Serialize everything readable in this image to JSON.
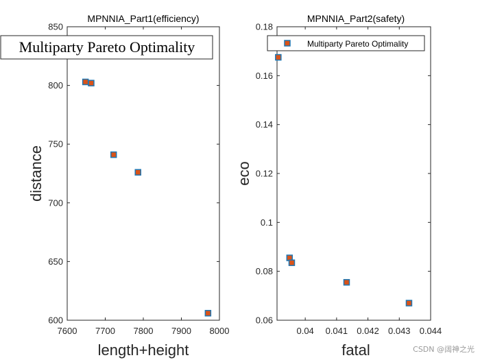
{
  "chart_data": [
    {
      "type": "scatter",
      "title": "MPNNIA_Part1(efficiency)",
      "xlabel": "length+height",
      "ylabel": "distance",
      "xlim": [
        7600,
        8000
      ],
      "ylim": [
        600,
        850
      ],
      "xticks": [
        "7600",
        "7700",
        "7800",
        "7900",
        "8000"
      ],
      "yticks": [
        "600",
        "650",
        "700",
        "750",
        "800",
        "850"
      ],
      "legend": "Multiparty Pareto Optimality",
      "x": [
        7648,
        7663,
        7722,
        7786,
        7970
      ],
      "y": [
        803,
        802,
        741,
        726,
        606
      ]
    },
    {
      "type": "scatter",
      "title": "MPNNIA_Part2(safety)",
      "xlabel": "fatal",
      "ylabel": "eco",
      "xlim": [
        0.0391,
        0.044
      ],
      "ylim": [
        0.06,
        0.18
      ],
      "xticks": [
        "0.04",
        "0.041",
        "0.042",
        "0.043",
        "0.044"
      ],
      "yticks": [
        "0.06",
        "0.08",
        "0.1",
        "0.12",
        "0.14",
        "0.16",
        "0.18"
      ],
      "legend": "Multiparty Pareto Optimality",
      "x": [
        0.03914,
        0.0395,
        0.03957,
        0.04132,
        0.04331
      ],
      "y": [
        0.1675,
        0.0855,
        0.0835,
        0.0755,
        0.067
      ]
    }
  ],
  "watermark": "CSDN @阔神之光",
  "colors": {
    "marker_edge": "#1f77b4",
    "marker_fill": "#d95319"
  }
}
